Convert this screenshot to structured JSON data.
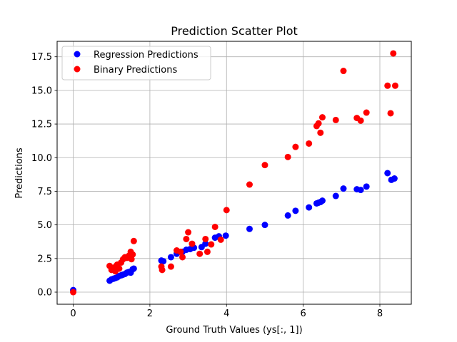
{
  "chart_data": {
    "type": "scatter",
    "title": "Prediction Scatter Plot",
    "xlabel": "Ground Truth Values (ys[:, 1])",
    "ylabel": "Predictions",
    "xlim": [
      -0.42,
      8.82
    ],
    "ylim": [
      -0.9,
      18.65
    ],
    "xticks": [
      0,
      2,
      4,
      6,
      8
    ],
    "xtick_labels": [
      "0",
      "2",
      "4",
      "6",
      "8"
    ],
    "yticks": [
      0,
      2.5,
      5,
      7.5,
      10,
      12.5,
      15,
      17.5
    ],
    "ytick_labels": [
      "0.0",
      "2.5",
      "5.0",
      "7.5",
      "10.0",
      "12.5",
      "15.0",
      "17.5"
    ],
    "grid": true,
    "legend_position": "top-left",
    "series": [
      {
        "name": "Regression Predictions",
        "color": "#0000ff",
        "points": [
          [
            0.0,
            0.15
          ],
          [
            0.95,
            0.85
          ],
          [
            1.0,
            0.95
          ],
          [
            1.05,
            1.0
          ],
          [
            1.1,
            1.05
          ],
          [
            1.15,
            1.1
          ],
          [
            1.2,
            1.2
          ],
          [
            1.25,
            1.25
          ],
          [
            1.3,
            1.3
          ],
          [
            1.35,
            1.35
          ],
          [
            1.4,
            1.45
          ],
          [
            1.45,
            1.5
          ],
          [
            1.5,
            1.45
          ],
          [
            1.55,
            1.7
          ],
          [
            1.58,
            1.75
          ],
          [
            2.3,
            2.35
          ],
          [
            2.35,
            2.3
          ],
          [
            2.55,
            2.6
          ],
          [
            2.7,
            2.85
          ],
          [
            2.85,
            3.0
          ],
          [
            2.95,
            3.15
          ],
          [
            3.05,
            3.2
          ],
          [
            3.15,
            3.3
          ],
          [
            3.35,
            3.35
          ],
          [
            3.45,
            3.6
          ],
          [
            3.7,
            4.05
          ],
          [
            3.8,
            4.15
          ],
          [
            3.98,
            4.2
          ],
          [
            4.6,
            4.7
          ],
          [
            5.0,
            5.0
          ],
          [
            5.6,
            5.7
          ],
          [
            5.8,
            6.05
          ],
          [
            6.15,
            6.3
          ],
          [
            6.35,
            6.6
          ],
          [
            6.4,
            6.65
          ],
          [
            6.45,
            6.7
          ],
          [
            6.5,
            6.8
          ],
          [
            6.85,
            7.15
          ],
          [
            7.05,
            7.7
          ],
          [
            7.4,
            7.65
          ],
          [
            7.5,
            7.6
          ],
          [
            7.65,
            7.85
          ],
          [
            8.2,
            8.85
          ],
          [
            8.3,
            8.35
          ],
          [
            8.38,
            8.45
          ]
        ]
      },
      {
        "name": "Binary Predictions",
        "color": "#ff0000",
        "points": [
          [
            0.0,
            0.0
          ],
          [
            0.95,
            1.95
          ],
          [
            1.0,
            1.65
          ],
          [
            1.05,
            1.8
          ],
          [
            1.1,
            1.55
          ],
          [
            1.12,
            1.95
          ],
          [
            1.15,
            2.05
          ],
          [
            1.2,
            1.75
          ],
          [
            1.25,
            2.2
          ],
          [
            1.3,
            2.45
          ],
          [
            1.35,
            2.6
          ],
          [
            1.4,
            2.55
          ],
          [
            1.45,
            2.7
          ],
          [
            1.5,
            3.0
          ],
          [
            1.52,
            2.45
          ],
          [
            1.55,
            2.8
          ],
          [
            1.58,
            3.8
          ],
          [
            2.3,
            1.9
          ],
          [
            2.32,
            1.65
          ],
          [
            2.55,
            1.9
          ],
          [
            2.7,
            3.1
          ],
          [
            2.8,
            3.0
          ],
          [
            2.85,
            2.6
          ],
          [
            2.95,
            3.95
          ],
          [
            3.0,
            4.45
          ],
          [
            3.1,
            3.6
          ],
          [
            3.3,
            2.85
          ],
          [
            3.45,
            3.95
          ],
          [
            3.5,
            3.0
          ],
          [
            3.6,
            3.55
          ],
          [
            3.7,
            4.85
          ],
          [
            3.85,
            3.9
          ],
          [
            4.0,
            6.1
          ],
          [
            4.6,
            8.0
          ],
          [
            5.0,
            9.45
          ],
          [
            5.6,
            10.05
          ],
          [
            5.8,
            10.8
          ],
          [
            6.15,
            11.05
          ],
          [
            6.35,
            12.35
          ],
          [
            6.4,
            12.55
          ],
          [
            6.45,
            11.85
          ],
          [
            6.5,
            13.0
          ],
          [
            6.85,
            12.8
          ],
          [
            7.05,
            16.45
          ],
          [
            7.4,
            12.95
          ],
          [
            7.5,
            12.75
          ],
          [
            7.65,
            13.35
          ],
          [
            8.2,
            15.35
          ],
          [
            8.28,
            13.3
          ],
          [
            8.35,
            17.75
          ],
          [
            8.4,
            15.35
          ]
        ]
      }
    ]
  }
}
